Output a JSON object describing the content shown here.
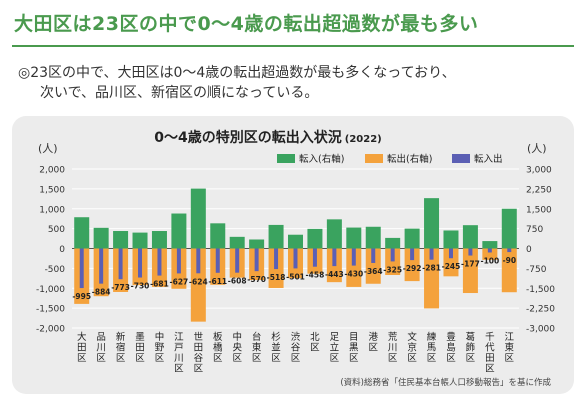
{
  "header": {
    "title": "大田区は23区の中で0～4歳の転出超過数が最も多い"
  },
  "summary": {
    "line1": "◎23区の中で、大田区は0～4歳の転出超過数が最も多くなっており、",
    "line2": "次いで、品川区、新宿区の順になっている。"
  },
  "chart_data": {
    "type": "bar",
    "title": "0～4歳の特別区の転出入状況",
    "title_year": "(2022)",
    "ylabel_left": "(人)",
    "ylabel_right": "(人)",
    "ylim_left": [
      -2000,
      2000
    ],
    "yticks_left": [
      "2,000",
      "1,500",
      "1,000",
      "500",
      "0",
      "-500",
      "-1,000",
      "-1,500",
      "-2,000"
    ],
    "ylim_right": [
      -3000,
      3000
    ],
    "yticks_right": [
      "3,000",
      "2,250",
      "1,500",
      "750",
      "0",
      "-750",
      "-1,500",
      "-2,250",
      "-3,000"
    ],
    "categories": [
      "大田区",
      "品川区",
      "新宿区",
      "墨田区",
      "中野区",
      "江戸川区",
      "世田谷区",
      "板橋区",
      "中央区",
      "台東区",
      "杉並区",
      "渋谷区",
      "北区",
      "足立区",
      "目黒区",
      "港区",
      "荒川区",
      "文京区",
      "練馬区",
      "豊島区",
      "葛飾区",
      "千代田区",
      "江東区"
    ],
    "series": [
      {
        "name": "転入(右軸)",
        "axis": "right",
        "color": "#3aa35f",
        "values": [
          1180,
          780,
          660,
          600,
          660,
          1320,
          2260,
          950,
          440,
          340,
          890,
          520,
          740,
          1100,
          790,
          820,
          400,
          750,
          1900,
          680,
          880,
          280,
          1500
        ]
      },
      {
        "name": "転出(右軸)",
        "axis": "right",
        "color": "#f4a23c",
        "values": [
          -2090,
          -1800,
          -1640,
          -1380,
          -1450,
          -1520,
          -2760,
          -1370,
          -1100,
          -1190,
          -1490,
          -1120,
          -950,
          -1270,
          -1450,
          -1330,
          -1000,
          -1230,
          -2260,
          -1050,
          -1680,
          -430,
          -1650
        ]
      },
      {
        "name": "転入出",
        "axis": "left",
        "color": "#5b5fb4",
        "values": [
          -995,
          -884,
          -773,
          -730,
          -681,
          -627,
          -624,
          -611,
          -608,
          -570,
          -518,
          -501,
          -458,
          -443,
          -430,
          -364,
          -325,
          -292,
          -281,
          -245,
          -177,
          -100,
          -90
        ]
      }
    ],
    "net_labels": [
      "-995",
      "-884",
      "-773",
      "-730",
      "-681",
      "-627",
      "-624",
      "-611",
      "-608",
      "-570",
      "-518",
      "-501",
      "-458",
      "-443",
      "-430",
      "-364",
      "-325",
      "-292",
      "-281",
      "-245",
      "-177",
      "-100",
      "-90"
    ],
    "legend_position": "top-right",
    "source": "(資料)総務省「住民基本台帳人口移動報告」を基に作成"
  }
}
